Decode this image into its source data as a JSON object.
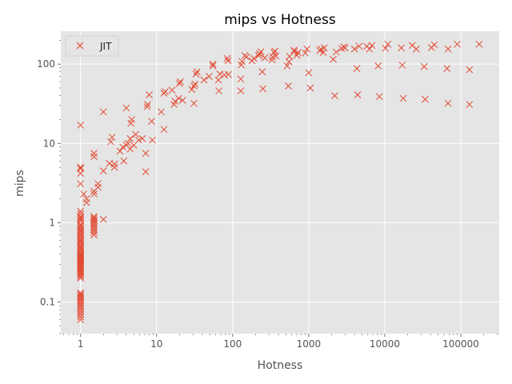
{
  "chart_data": {
    "type": "scatter",
    "title": "mips vs Hotness",
    "xlabel": "Hotness",
    "ylabel": "mips",
    "xscale": "log",
    "yscale": "log",
    "xlim": [
      0.55,
      320000
    ],
    "ylim": [
      0.04,
      260
    ],
    "x_ticks": [
      {
        "value": 1,
        "label": "1"
      },
      {
        "value": 10,
        "label": "10"
      },
      {
        "value": 100,
        "label": "100"
      },
      {
        "value": 1000,
        "label": "1000"
      },
      {
        "value": 10000,
        "label": "10000"
      },
      {
        "value": 100000,
        "label": "100000"
      }
    ],
    "y_ticks": [
      {
        "value": 0.1,
        "label": "0.1"
      },
      {
        "value": 1,
        "label": "1"
      },
      {
        "value": 10,
        "label": "10"
      },
      {
        "value": 100,
        "label": "100"
      }
    ],
    "grid": true,
    "legend": {
      "position": "top-left",
      "entries": [
        "JIT"
      ]
    },
    "series": [
      {
        "name": "JIT",
        "marker": "x",
        "color": "#E24A33",
        "points": [
          [
            1,
            0.06
          ],
          [
            1,
            0.065
          ],
          [
            1,
            0.07
          ],
          [
            1,
            0.075
          ],
          [
            1,
            0.08
          ],
          [
            1,
            0.085
          ],
          [
            1,
            0.09
          ],
          [
            1,
            0.095
          ],
          [
            1,
            0.1
          ],
          [
            1,
            0.105
          ],
          [
            1,
            0.11
          ],
          [
            1,
            0.115
          ],
          [
            1,
            0.12
          ],
          [
            1,
            0.125
          ],
          [
            1,
            0.13
          ],
          [
            1,
            0.2
          ],
          [
            1,
            0.21
          ],
          [
            1,
            0.22
          ],
          [
            1,
            0.23
          ],
          [
            1,
            0.24
          ],
          [
            1,
            0.25
          ],
          [
            1,
            0.26
          ],
          [
            1,
            0.27
          ],
          [
            1,
            0.28
          ],
          [
            1,
            0.29
          ],
          [
            1,
            0.3
          ],
          [
            1,
            0.31
          ],
          [
            1,
            0.32
          ],
          [
            1,
            0.33
          ],
          [
            1,
            0.34
          ],
          [
            1,
            0.35
          ],
          [
            1,
            0.36
          ],
          [
            1,
            0.37
          ],
          [
            1,
            0.38
          ],
          [
            1,
            0.39
          ],
          [
            1,
            0.4
          ],
          [
            1,
            0.42
          ],
          [
            1,
            0.44
          ],
          [
            1,
            0.46
          ],
          [
            1,
            0.48
          ],
          [
            1,
            0.5
          ],
          [
            1,
            0.52
          ],
          [
            1,
            0.55
          ],
          [
            1,
            0.58
          ],
          [
            1,
            0.6
          ],
          [
            1,
            0.63
          ],
          [
            1,
            0.66
          ],
          [
            1,
            0.7
          ],
          [
            1,
            0.73
          ],
          [
            1,
            0.77
          ],
          [
            1,
            0.8
          ],
          [
            1,
            0.84
          ],
          [
            1,
            0.88
          ],
          [
            1,
            0.92
          ],
          [
            1,
            0.96
          ],
          [
            1,
            1.05
          ],
          [
            1,
            1.1
          ],
          [
            1,
            1.15
          ],
          [
            1,
            1.2
          ],
          [
            1,
            1.3
          ],
          [
            1,
            1.4
          ],
          [
            1,
            3.1
          ],
          [
            1,
            4.2
          ],
          [
            1,
            4.8
          ],
          [
            1,
            5.0
          ],
          [
            1,
            17
          ],
          [
            1.1,
            2.3
          ],
          [
            1.2,
            1.8
          ],
          [
            1.2,
            2.0
          ],
          [
            1.5,
            0.7
          ],
          [
            1.5,
            0.75
          ],
          [
            1.5,
            0.8
          ],
          [
            1.5,
            0.85
          ],
          [
            1.5,
            0.9
          ],
          [
            1.5,
            0.95
          ],
          [
            1.5,
            1.0
          ],
          [
            1.5,
            1.05
          ],
          [
            1.5,
            1.1
          ],
          [
            1.5,
            1.15
          ],
          [
            1.5,
            1.2
          ],
          [
            1.5,
            2.3
          ],
          [
            1.5,
            2.5
          ],
          [
            1.5,
            6.8
          ],
          [
            1.5,
            7.5
          ],
          [
            1.7,
            2.8
          ],
          [
            1.7,
            3.1
          ],
          [
            2.0,
            1.1
          ],
          [
            2.0,
            4.5
          ],
          [
            2.0,
            25
          ],
          [
            2.4,
            5.6
          ],
          [
            2.5,
            10.5
          ],
          [
            2.6,
            12
          ],
          [
            2.8,
            5.0
          ],
          [
            2.8,
            5.5
          ],
          [
            3.3,
            8.0
          ],
          [
            3.6,
            9.0
          ],
          [
            3.7,
            6.0
          ],
          [
            4.0,
            9.5
          ],
          [
            4.0,
            28
          ],
          [
            4.2,
            10.0
          ],
          [
            4.5,
            11.5
          ],
          [
            4.5,
            8.5
          ],
          [
            4.6,
            18
          ],
          [
            4.7,
            20
          ],
          [
            5.0,
            9.5
          ],
          [
            5.3,
            13
          ],
          [
            5.8,
            11
          ],
          [
            6.5,
            11.5
          ],
          [
            7.2,
            4.4
          ],
          [
            7.2,
            7.5
          ],
          [
            7.5,
            29
          ],
          [
            7.6,
            31
          ],
          [
            8.0,
            41
          ],
          [
            8.6,
            19
          ],
          [
            8.8,
            11
          ],
          [
            11.5,
            25
          ],
          [
            12.5,
            43
          ],
          [
            12.5,
            15
          ],
          [
            13,
            45
          ],
          [
            16,
            47
          ],
          [
            17,
            31
          ],
          [
            17.5,
            34
          ],
          [
            19.5,
            37
          ],
          [
            20,
            57
          ],
          [
            20.5,
            60
          ],
          [
            22,
            35
          ],
          [
            29,
            48
          ],
          [
            31,
            53
          ],
          [
            31,
            32
          ],
          [
            32,
            56
          ],
          [
            33,
            75
          ],
          [
            34,
            80
          ],
          [
            42,
            63
          ],
          [
            49,
            70
          ],
          [
            55,
            95
          ],
          [
            55,
            100
          ],
          [
            65,
            63
          ],
          [
            66,
            46
          ],
          [
            68,
            75
          ],
          [
            78,
            73
          ],
          [
            85,
            118
          ],
          [
            87,
            110
          ],
          [
            88,
            74
          ],
          [
            128,
            46
          ],
          [
            128,
            65
          ],
          [
            130,
            98
          ],
          [
            133,
            108
          ],
          [
            145,
            128
          ],
          [
            152,
            123
          ],
          [
            180,
            110
          ],
          [
            190,
            118
          ],
          [
            220,
            128
          ],
          [
            225,
            135
          ],
          [
            235,
            143
          ],
          [
            245,
            80
          ],
          [
            250,
            49
          ],
          [
            265,
            120
          ],
          [
            330,
            113
          ],
          [
            335,
            123
          ],
          [
            350,
            140
          ],
          [
            360,
            146
          ],
          [
            370,
            127
          ],
          [
            520,
            95
          ],
          [
            540,
            53
          ],
          [
            550,
            107
          ],
          [
            560,
            125
          ],
          [
            640,
            150
          ],
          [
            650,
            145
          ],
          [
            700,
            130
          ],
          [
            720,
            140
          ],
          [
            900,
            138
          ],
          [
            950,
            155
          ],
          [
            1000,
            78
          ],
          [
            1050,
            50
          ],
          [
            1400,
            148
          ],
          [
            1450,
            155
          ],
          [
            1550,
            140
          ],
          [
            1600,
            160
          ],
          [
            2100,
            115
          ],
          [
            2200,
            40
          ],
          [
            2300,
            142
          ],
          [
            2700,
            158
          ],
          [
            2900,
            165
          ],
          [
            3000,
            160
          ],
          [
            4000,
            155
          ],
          [
            4300,
            88
          ],
          [
            4400,
            41
          ],
          [
            4600,
            168
          ],
          [
            5800,
            168
          ],
          [
            6300,
            155
          ],
          [
            6800,
            172
          ],
          [
            8200,
            95
          ],
          [
            8500,
            39
          ],
          [
            10200,
            158
          ],
          [
            11000,
            178
          ],
          [
            16500,
            160
          ],
          [
            17000,
            97
          ],
          [
            17500,
            37
          ],
          [
            23000,
            172
          ],
          [
            26000,
            155
          ],
          [
            33000,
            93
          ],
          [
            34000,
            36
          ],
          [
            41000,
            162
          ],
          [
            45000,
            175
          ],
          [
            66000,
            88
          ],
          [
            68000,
            155
          ],
          [
            68000,
            32
          ],
          [
            90000,
            178
          ],
          [
            130000,
            85
          ],
          [
            130000,
            31
          ],
          [
            175000,
            178
          ]
        ]
      }
    ]
  }
}
